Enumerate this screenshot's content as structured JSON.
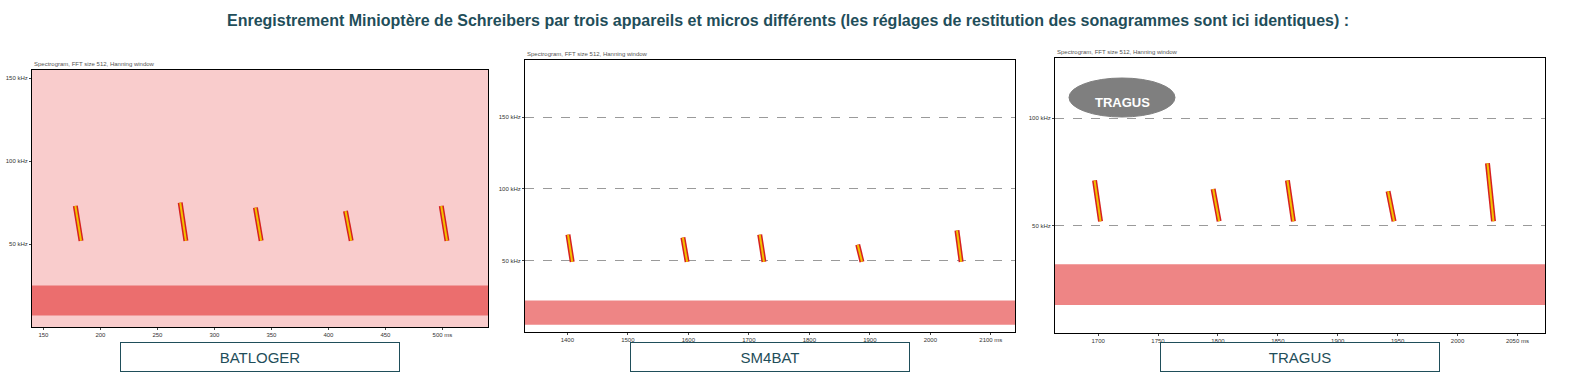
{
  "title": "Enregistrement Minioptère de Schreibers par trois appareils et micros différents (les réglages de restitution des sonagrammes sont ici identiques) :",
  "chart_data": [
    {
      "type": "spectrogram",
      "title": "BATLOGER",
      "subtitle": "Spectrogram, FFT size 512, Hanning window",
      "xlim": [
        140,
        540
      ],
      "xticks": [
        150,
        200,
        250,
        300,
        350,
        400,
        450,
        {
          "value": 500,
          "label": "500 ms"
        }
      ],
      "ylim": [
        0,
        155
      ],
      "yticks": [
        {
          "value": 50,
          "label": "50 kHz"
        },
        {
          "value": 100,
          "label": "100 kHz"
        },
        {
          "value": 150,
          "label": "150 kHz"
        }
      ],
      "grid": false,
      "calls": {
        "color": "#f2c200",
        "x_start": [
          178,
          270,
          336,
          415,
          499
        ],
        "x_end": [
          183,
          275,
          341,
          420,
          504
        ],
        "f_start": [
          73,
          75,
          72,
          70,
          73
        ],
        "f_end": [
          52,
          52,
          52,
          52,
          52
        ]
      },
      "noise": [
        {
          "color": "#f4a3a3",
          "f_low": 0,
          "f_high": 155
        },
        {
          "color": "#e02020",
          "f_low": 7,
          "f_high": 25
        }
      ]
    },
    {
      "type": "spectrogram",
      "title": "SM4BAT",
      "subtitle": "Spectrogram, FFT size 512, Hanning window",
      "xlim": [
        1330,
        2140
      ],
      "xticks": [
        1400,
        1500,
        1600,
        1700,
        1800,
        1900,
        2000,
        {
          "value": 2100,
          "label": "2100 ms"
        }
      ],
      "ylim": [
        0,
        190
      ],
      "yticks": [
        {
          "value": 50,
          "label": "50 kHz"
        },
        {
          "value": 100,
          "label": "100 kHz"
        },
        {
          "value": 150,
          "label": "150 kHz"
        }
      ],
      "grid": true,
      "calls": {
        "color": "#f2c200",
        "x_start": [
          1401,
          1591,
          1718,
          1880,
          2044
        ],
        "x_end": [
          1408,
          1598,
          1725,
          1887,
          2051
        ],
        "f_start": [
          68,
          66,
          68,
          61,
          71
        ],
        "f_end": [
          49,
          49,
          49,
          49,
          49
        ]
      },
      "noise": [
        {
          "color": "#e02020",
          "f_low": 5,
          "f_high": 22
        }
      ]
    },
    {
      "type": "spectrogram",
      "title": "TRAGUS",
      "subtitle": "Spectrogram, FFT size 512, Hanning window",
      "logo": "TRAGUS",
      "xlim": [
        1664,
        2073
      ],
      "xticks": [
        1700,
        1750,
        1800,
        1850,
        1900,
        1950,
        2000,
        {
          "value": 2050,
          "label": "2050 ms"
        }
      ],
      "ylim": [
        0,
        128
      ],
      "yticks": [
        {
          "value": 50,
          "label": "50 kHz"
        },
        {
          "value": 100,
          "label": "100 kHz"
        }
      ],
      "grid": true,
      "calls": {
        "color": "#f2c200",
        "x_start": [
          1697,
          1796,
          1858,
          1942,
          2025
        ],
        "x_end": [
          1702,
          1801,
          1863,
          1947,
          2030
        ],
        "f_start": [
          71,
          67,
          71,
          66,
          79
        ],
        "f_end": [
          52,
          52,
          52,
          52,
          52
        ]
      },
      "noise": [
        {
          "color": "#e02020",
          "f_low": 13,
          "f_high": 32
        }
      ]
    }
  ]
}
